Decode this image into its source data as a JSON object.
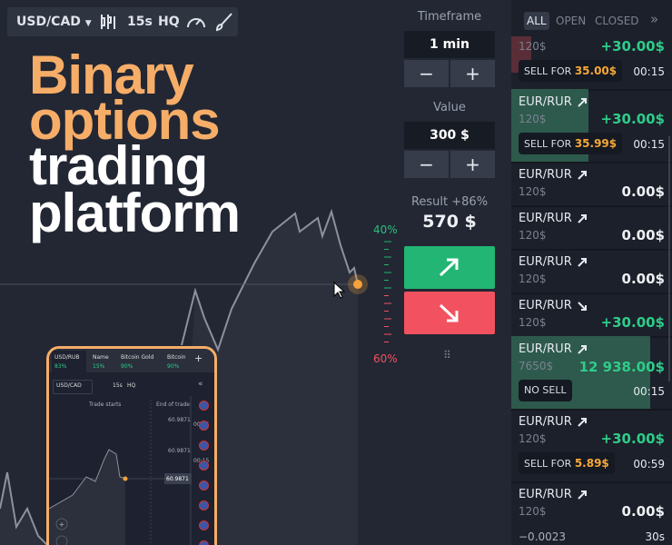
{
  "toolbar": {
    "pair": "USD/CAD",
    "timeframe": "15s",
    "quality": "HQ"
  },
  "headline": {
    "lines": [
      "Binary",
      "options",
      "trading",
      "platform"
    ]
  },
  "controls": {
    "timeframe_label": "Timeframe",
    "timeframe_value": "1 min",
    "value_label": "Value",
    "value_amount": "300 $",
    "minus": "−",
    "plus": "+",
    "result_label": "Result +86%",
    "result_amount": "570 $"
  },
  "scale": {
    "top": "40%",
    "bottom": "60%"
  },
  "tabs": [
    "ALL",
    "OPEN",
    "CLOSED"
  ],
  "trades": [
    {
      "amount": "120$",
      "profit": "+30.00$",
      "win": true,
      "sell_label": "SELL FOR",
      "sell_price": "35.00$",
      "time": "00:15"
    },
    {
      "pair": "EUR/RUR",
      "direction": "up",
      "amount": "120$",
      "profit": "+30.00$",
      "win": true,
      "highlight": true,
      "sell_label": "SELL FOR",
      "sell_price": "35.99$",
      "time": "00:15"
    },
    {
      "pair": "EUR/RUR",
      "direction": "up",
      "amount": "120$",
      "profit": "0.00$"
    },
    {
      "pair": "EUR/RUR",
      "direction": "up",
      "amount": "120$",
      "profit": "0.00$"
    },
    {
      "pair": "EUR/RUR",
      "direction": "up",
      "amount": "120$",
      "profit": "0.00$"
    },
    {
      "pair": "EUR/RUR",
      "direction": "down",
      "amount": "120$",
      "profit": "+30.00$",
      "win": true
    },
    {
      "pair": "EUR/RUR",
      "direction": "up",
      "amount": "7650$",
      "profit": "12 938.00$",
      "win": true,
      "highlight": true,
      "sell_label": "NO SELL",
      "time": "00:15"
    },
    {
      "pair": "EUR/RUR",
      "direction": "up",
      "amount": "120$",
      "profit": "+30.00$",
      "win": true,
      "sell_label": "SELL FOR",
      "sell_price": "5.89$",
      "time": "00:59"
    },
    {
      "pair": "EUR/RUR",
      "direction": "up",
      "amount": "120$",
      "profit": "0.00$",
      "change": "−0.0023",
      "time": "30s"
    }
  ],
  "phone": {
    "assets": [
      {
        "name": "USD/RUB",
        "pct": "83%"
      },
      {
        "name": "Name",
        "pct": "15%"
      },
      {
        "name": "Bitcoin Gold",
        "pct": "90%"
      },
      {
        "name": "Bitcoin",
        "pct": "90%"
      }
    ],
    "pair": "USD/CAD",
    "timeframe": "15s",
    "quality": "HQ",
    "trade_starts": "Trade starts",
    "end_of_trade": "End of trade",
    "prices": [
      "60.9871",
      "60.9871",
      "60.9871"
    ],
    "times": [
      "00:15",
      "00:15"
    ]
  }
}
